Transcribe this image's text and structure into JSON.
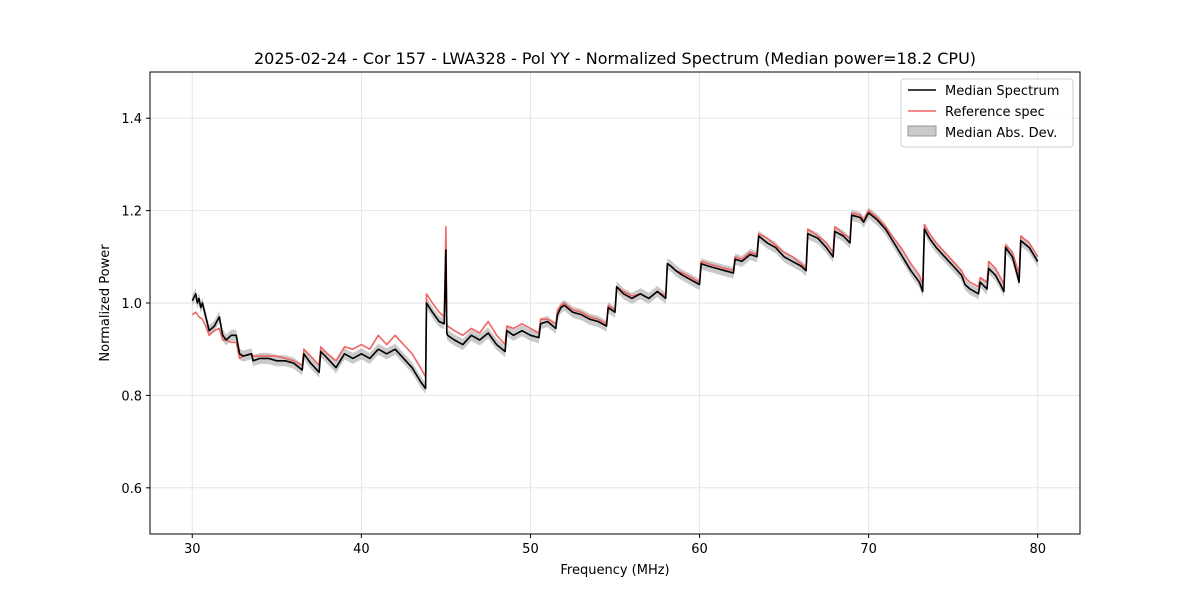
{
  "chart_data": {
    "type": "line",
    "title": "2025-02-24 - Cor 157 - LWA328 - Pol YY - Normalized Spectrum (Median power=18.2 CPU)",
    "xlabel": "Frequency (MHz)",
    "ylabel": "Normalized Power",
    "xlim": [
      27.5,
      82.5
    ],
    "ylim": [
      0.5,
      1.5
    ],
    "xticks": [
      30,
      40,
      50,
      60,
      70,
      80
    ],
    "yticks": [
      0.6,
      0.8,
      1.0,
      1.2,
      1.4
    ],
    "xtick_labels": [
      "30",
      "40",
      "50",
      "60",
      "70",
      "80"
    ],
    "ytick_labels": [
      "0.6",
      "0.8",
      "1.0",
      "1.2",
      "1.4"
    ],
    "grid": true,
    "legend_position": "top-right",
    "legend": [
      "Median Spectrum",
      "Reference spec",
      "Median Abs. Dev."
    ],
    "colors": {
      "median": "#000000",
      "reference": "#f06464",
      "mad": "#b4b4b4"
    },
    "series": [
      {
        "name": "Median Spectrum",
        "x": [
          30.0,
          30.2,
          30.3,
          30.4,
          30.5,
          30.6,
          30.8,
          31.0,
          31.3,
          31.6,
          31.8,
          32.0,
          32.3,
          32.6,
          32.8,
          33.0,
          33.5,
          33.6,
          34.0,
          34.5,
          35.0,
          35.5,
          36.0,
          36.5,
          36.6,
          37.0,
          37.5,
          37.6,
          38.0,
          38.5,
          39.0,
          39.5,
          40.0,
          40.5,
          41.0,
          41.5,
          42.0,
          42.5,
          43.0,
          43.5,
          43.8,
          43.85,
          44.2,
          44.6,
          44.9,
          45.0,
          45.05,
          45.1,
          45.5,
          46.0,
          46.5,
          47.0,
          47.5,
          48.0,
          48.5,
          48.6,
          49.0,
          49.5,
          50.0,
          50.5,
          50.6,
          51.0,
          51.5,
          51.6,
          51.8,
          52.0,
          52.5,
          53.0,
          53.5,
          54.0,
          54.5,
          54.6,
          55.0,
          55.1,
          55.5,
          56.0,
          56.5,
          57.0,
          57.5,
          58.0,
          58.1,
          58.3,
          58.6,
          59.0,
          59.5,
          60.0,
          60.1,
          60.5,
          61.0,
          61.5,
          62.0,
          62.1,
          62.5,
          63.0,
          63.4,
          63.5,
          64.0,
          64.5,
          65.0,
          65.5,
          66.0,
          66.3,
          66.4,
          67.0,
          67.5,
          67.9,
          68.0,
          68.5,
          68.9,
          69.0,
          69.5,
          69.7,
          70.0,
          70.5,
          71.0,
          71.5,
          72.0,
          72.5,
          73.0,
          73.2,
          73.3,
          73.6,
          74.0,
          74.5,
          75.0,
          75.5,
          75.7,
          76.0,
          76.5,
          76.6,
          77.0,
          77.1,
          77.5,
          77.8,
          78.0,
          78.1,
          78.5,
          78.8,
          78.9,
          79.0,
          79.5,
          80.0
        ],
        "values": [
          1.005,
          1.02,
          1.0,
          1.01,
          0.99,
          1.0,
          0.97,
          0.94,
          0.95,
          0.97,
          0.93,
          0.92,
          0.93,
          0.93,
          0.89,
          0.885,
          0.89,
          0.875,
          0.88,
          0.88,
          0.875,
          0.875,
          0.87,
          0.855,
          0.89,
          0.87,
          0.85,
          0.895,
          0.88,
          0.86,
          0.89,
          0.88,
          0.89,
          0.88,
          0.9,
          0.89,
          0.9,
          0.88,
          0.86,
          0.83,
          0.815,
          1.0,
          0.98,
          0.96,
          0.955,
          1.115,
          0.935,
          0.93,
          0.92,
          0.91,
          0.93,
          0.92,
          0.935,
          0.91,
          0.895,
          0.94,
          0.93,
          0.94,
          0.93,
          0.925,
          0.955,
          0.96,
          0.945,
          0.975,
          0.99,
          0.995,
          0.98,
          0.975,
          0.965,
          0.96,
          0.95,
          0.99,
          0.98,
          1.035,
          1.02,
          1.01,
          1.02,
          1.01,
          1.025,
          1.01,
          1.085,
          1.08,
          1.07,
          1.06,
          1.05,
          1.04,
          1.085,
          1.08,
          1.075,
          1.07,
          1.065,
          1.095,
          1.09,
          1.105,
          1.1,
          1.145,
          1.13,
          1.12,
          1.1,
          1.09,
          1.08,
          1.07,
          1.15,
          1.14,
          1.12,
          1.1,
          1.155,
          1.145,
          1.13,
          1.19,
          1.185,
          1.175,
          1.195,
          1.18,
          1.16,
          1.13,
          1.1,
          1.07,
          1.045,
          1.025,
          1.16,
          1.14,
          1.12,
          1.1,
          1.08,
          1.06,
          1.04,
          1.03,
          1.02,
          1.045,
          1.03,
          1.075,
          1.06,
          1.04,
          1.025,
          1.12,
          1.1,
          1.06,
          1.045,
          1.135,
          1.12,
          1.09
        ]
      },
      {
        "name": "Reference spec",
        "x": [
          30.0,
          30.2,
          30.4,
          30.6,
          30.8,
          31.0,
          31.3,
          31.6,
          31.8,
          32.0,
          32.3,
          32.6,
          32.8,
          33.0,
          33.5,
          33.6,
          34.0,
          34.5,
          35.0,
          35.5,
          36.0,
          36.5,
          36.6,
          37.0,
          37.5,
          37.6,
          38.0,
          38.5,
          39.0,
          39.5,
          40.0,
          40.5,
          41.0,
          41.5,
          42.0,
          42.5,
          43.0,
          43.5,
          43.8,
          43.85,
          44.2,
          44.6,
          44.9,
          45.0,
          45.05,
          45.1,
          45.5,
          46.0,
          46.5,
          47.0,
          47.5,
          48.0,
          48.5,
          48.6,
          49.0,
          49.5,
          50.0,
          50.5,
          50.6,
          51.0,
          51.5,
          51.6,
          51.8,
          52.0,
          52.5,
          53.0,
          53.5,
          54.0,
          54.5,
          54.6,
          55.0,
          55.1,
          55.5,
          56.0,
          56.5,
          57.0,
          57.5,
          58.0,
          58.1,
          58.3,
          58.6,
          59.0,
          59.5,
          60.0,
          60.1,
          60.5,
          61.0,
          61.5,
          62.0,
          62.1,
          62.5,
          63.0,
          63.4,
          63.5,
          64.0,
          64.5,
          65.0,
          65.5,
          66.0,
          66.3,
          66.4,
          67.0,
          67.5,
          67.9,
          68.0,
          68.5,
          68.9,
          69.0,
          69.5,
          69.7,
          70.0,
          70.5,
          71.0,
          71.5,
          72.0,
          72.5,
          73.0,
          73.2,
          73.3,
          73.6,
          74.0,
          74.5,
          75.0,
          75.5,
          75.7,
          76.0,
          76.5,
          76.6,
          77.0,
          77.1,
          77.5,
          77.8,
          78.0,
          78.1,
          78.5,
          78.8,
          78.9,
          79.0,
          79.5,
          80.0
        ],
        "values": [
          0.975,
          0.98,
          0.97,
          0.965,
          0.95,
          0.93,
          0.94,
          0.945,
          0.92,
          0.92,
          0.915,
          0.915,
          0.88,
          0.885,
          0.89,
          0.885,
          0.885,
          0.885,
          0.885,
          0.88,
          0.875,
          0.865,
          0.9,
          0.885,
          0.865,
          0.905,
          0.89,
          0.875,
          0.905,
          0.9,
          0.91,
          0.9,
          0.93,
          0.91,
          0.93,
          0.91,
          0.89,
          0.86,
          0.84,
          1.02,
          1.0,
          0.98,
          0.97,
          1.165,
          0.955,
          0.95,
          0.94,
          0.93,
          0.945,
          0.935,
          0.96,
          0.93,
          0.91,
          0.95,
          0.945,
          0.955,
          0.945,
          0.935,
          0.965,
          0.965,
          0.955,
          0.985,
          0.995,
          1.0,
          0.985,
          0.98,
          0.97,
          0.965,
          0.955,
          0.995,
          0.985,
          1.035,
          1.025,
          1.015,
          1.02,
          1.01,
          1.025,
          1.015,
          1.085,
          1.08,
          1.07,
          1.065,
          1.055,
          1.045,
          1.09,
          1.085,
          1.08,
          1.075,
          1.07,
          1.1,
          1.095,
          1.11,
          1.105,
          1.15,
          1.14,
          1.125,
          1.11,
          1.1,
          1.085,
          1.075,
          1.16,
          1.145,
          1.13,
          1.11,
          1.165,
          1.15,
          1.14,
          1.195,
          1.19,
          1.18,
          1.2,
          1.185,
          1.165,
          1.14,
          1.115,
          1.085,
          1.06,
          1.04,
          1.17,
          1.15,
          1.13,
          1.11,
          1.09,
          1.07,
          1.055,
          1.045,
          1.035,
          1.055,
          1.045,
          1.09,
          1.075,
          1.055,
          1.04,
          1.125,
          1.11,
          1.075,
          1.06,
          1.145,
          1.13,
          1.1
        ]
      },
      {
        "name": "Median Abs. Dev.",
        "type": "band",
        "half_width": 0.012
      }
    ]
  }
}
